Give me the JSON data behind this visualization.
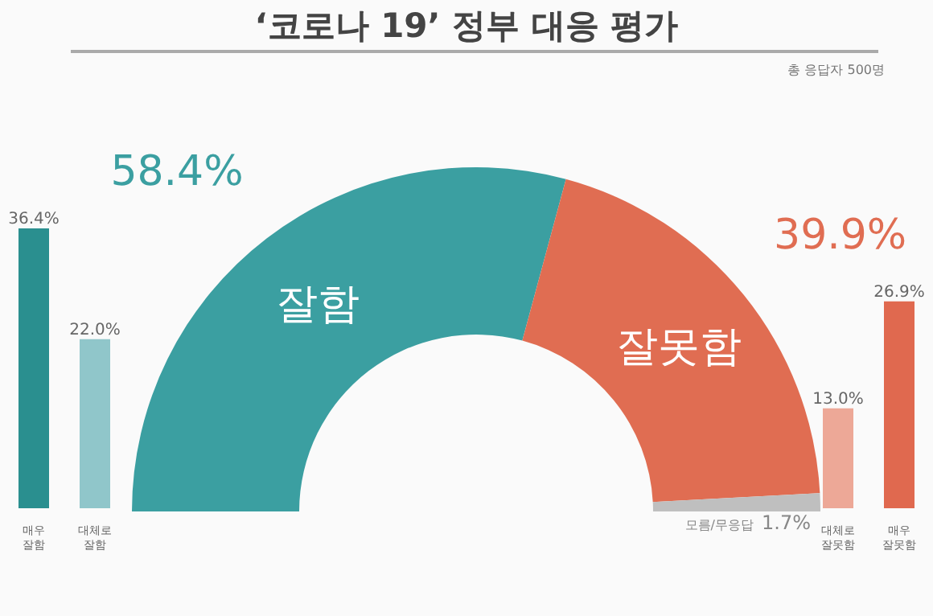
{
  "chart_data": [
    {
      "type": "donut",
      "title": "‘코로나 19’ 정부 대응 평가",
      "subtitle": "총 응답자 500명",
      "categories": [
        "잘함",
        "잘못함",
        "모름/무응답"
      ],
      "values": [
        58.4,
        39.9,
        1.7
      ],
      "colors": [
        "#3b9fa1",
        "#e06d52",
        "#bfbfbf"
      ],
      "value_labels": [
        "58.4%",
        "39.9%",
        "1.7%"
      ]
    },
    {
      "type": "bar",
      "categories": [
        "매우 잘함",
        "대체로 잘함"
      ],
      "values": [
        36.4,
        22.0
      ],
      "colors": [
        "#2a8f8f",
        "#90c6ca"
      ],
      "value_labels": [
        "36.4%",
        "22.0%"
      ],
      "tick_labels": "x"
    },
    {
      "type": "bar",
      "categories": [
        "대체로 잘못함",
        "매우 잘못함"
      ],
      "values": [
        13.0,
        26.9
      ],
      "colors": [
        "#eda897",
        "#e0694f"
      ],
      "value_labels": [
        "13.0%",
        "26.9%"
      ],
      "tick_labels": "x"
    }
  ]
}
